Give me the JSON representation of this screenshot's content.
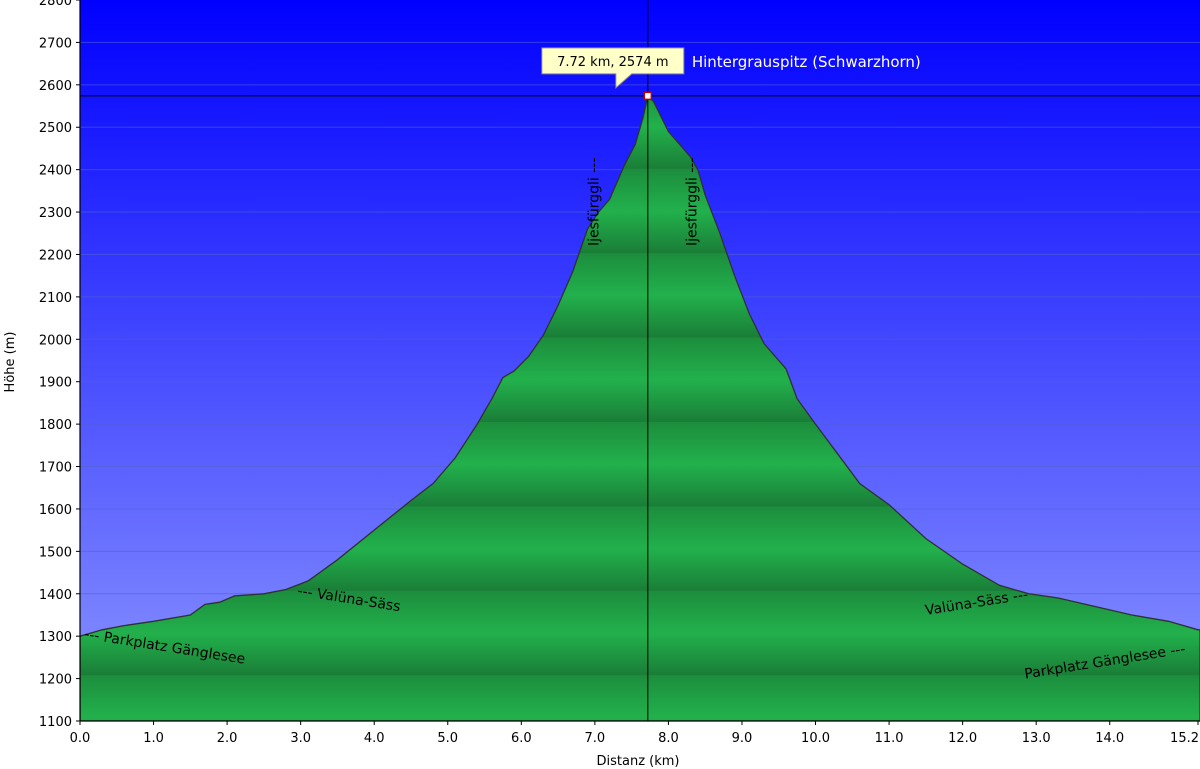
{
  "chart_data": {
    "type": "area",
    "xlabel": "Distanz  (km)",
    "ylabel": "Höhe (m)",
    "xlim": [
      0,
      15.2
    ],
    "ylim": [
      1100,
      2800
    ],
    "x_ticks": [
      "0.0",
      "1.0",
      "2.0",
      "3.0",
      "4.0",
      "5.0",
      "6.0",
      "7.0",
      "8.0",
      "9.0",
      "10.0",
      "11.0",
      "12.0",
      "13.0",
      "14.0",
      "15.2"
    ],
    "y_ticks": [
      "1100",
      "1200",
      "1300",
      "1400",
      "1500",
      "1600",
      "1700",
      "1800",
      "1900",
      "2000",
      "2100",
      "2200",
      "2300",
      "2400",
      "2500",
      "2600",
      "2700",
      "2800"
    ],
    "grid": true,
    "series": [
      {
        "x": [
          0.0,
          0.3,
          0.6,
          1.0,
          1.5,
          1.7,
          1.9,
          2.1,
          2.5,
          2.8,
          3.1,
          3.5,
          4.0,
          4.5,
          4.8,
          5.1,
          5.4,
          5.6,
          5.75,
          5.9,
          6.1,
          6.3,
          6.5,
          6.7,
          6.9,
          7.05,
          7.2,
          7.4,
          7.55,
          7.65,
          7.72,
          7.8,
          8.0,
          8.15,
          8.3,
          8.4,
          8.5,
          8.7,
          8.9,
          9.1,
          9.3,
          9.6,
          9.75,
          10.0,
          10.3,
          10.6,
          11.0,
          11.5,
          12.0,
          12.5,
          12.9,
          13.3,
          13.8,
          14.3,
          14.8,
          15.2
        ],
        "y": [
          1300,
          1315,
          1325,
          1335,
          1350,
          1375,
          1380,
          1395,
          1400,
          1410,
          1430,
          1480,
          1550,
          1620,
          1660,
          1720,
          1800,
          1860,
          1910,
          1925,
          1960,
          2010,
          2080,
          2160,
          2260,
          2300,
          2330,
          2410,
          2460,
          2520,
          2574,
          2560,
          2490,
          2460,
          2430,
          2400,
          2340,
          2250,
          2150,
          2060,
          1990,
          1930,
          1860,
          1800,
          1730,
          1660,
          1610,
          1530,
          1470,
          1420,
          1400,
          1390,
          1370,
          1350,
          1335,
          1315
        ]
      }
    ],
    "marker": {
      "x": 7.72,
      "y": 2574,
      "tooltip": "7.72 km, 2574 m",
      "name": "Hintergrauspitz  (Schwarzhorn)"
    },
    "annotations": [
      {
        "text": "--- Parkplatz Gänglesee",
        "x": 0.05,
        "y": 1295,
        "angle": 9
      },
      {
        "text": "--- Valüna-Säss",
        "x": 2.95,
        "y": 1397,
        "angle": 9
      },
      {
        "text": "Ijesfürggli ---",
        "x": 7.05,
        "y": 2220,
        "angle": -90
      },
      {
        "text": "Ijesfürggli ---",
        "x": 8.38,
        "y": 2220,
        "angle": -90
      },
      {
        "text": "Valüna-Säss ---",
        "x": 11.5,
        "y": 1350,
        "angle": -9
      },
      {
        "text": "Parkplatz Gänglesee ---",
        "x": 12.85,
        "y": 1200,
        "angle": -9
      }
    ],
    "colors": {
      "sky_top": "#0000ff",
      "sky_bottom": "#8c96ff",
      "fill_light": "#22b14c",
      "fill_dark": "#16672e",
      "line": "#303030",
      "grid": "#5060d0"
    }
  }
}
